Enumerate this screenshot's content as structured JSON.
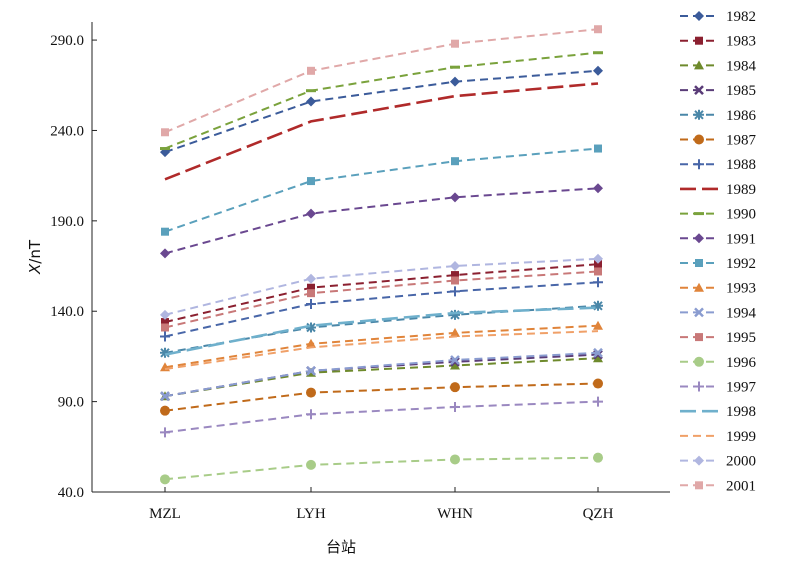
{
  "chart_data": {
    "type": "line",
    "title": "",
    "xlabel": "台站",
    "ylabel": "X/nT",
    "ylabel_italic_part": "X",
    "ylabel_rest": "/nT",
    "categories": [
      "MZL",
      "LYH",
      "WHN",
      "QZH"
    ],
    "ylim": [
      40,
      300
    ],
    "yticks": [
      40,
      90,
      140,
      190,
      240,
      290
    ],
    "ytick_labels": [
      "40.0",
      "90.0",
      "140.0",
      "190.0",
      "240.0",
      "290.0"
    ],
    "grid": false,
    "legend_position": "right",
    "series": [
      {
        "name": "1982",
        "values": [
          228,
          256,
          267,
          273
        ],
        "color": "#3b5b9a",
        "marker": "diamond",
        "dash": "dashed"
      },
      {
        "name": "1983",
        "values": [
          134,
          153,
          160,
          166
        ],
        "color": "#8b2030",
        "marker": "square",
        "dash": "dashed"
      },
      {
        "name": "1984",
        "values": [
          93,
          106,
          110,
          114
        ],
        "color": "#6e8a2c",
        "marker": "triangle",
        "dash": "dashed"
      },
      {
        "name": "1985",
        "values": [
          93,
          107,
          112,
          116
        ],
        "color": "#5a3c78",
        "marker": "x",
        "dash": "dashed"
      },
      {
        "name": "1986",
        "values": [
          117,
          131,
          138,
          143
        ],
        "color": "#4a87a8",
        "marker": "star",
        "dash": "dashed"
      },
      {
        "name": "1987",
        "values": [
          85,
          95,
          98,
          100
        ],
        "color": "#c06a1a",
        "marker": "circle",
        "dash": "dashed"
      },
      {
        "name": "1988",
        "values": [
          126,
          144,
          151,
          156
        ],
        "color": "#4866a8",
        "marker": "plus",
        "dash": "dashed"
      },
      {
        "name": "1989",
        "values": [
          213,
          245,
          259,
          266
        ],
        "color": "#b02a2a",
        "marker": "none",
        "dash": "longdash"
      },
      {
        "name": "1990",
        "values": [
          230,
          262,
          275,
          283
        ],
        "color": "#7aa23c",
        "marker": "dash",
        "dash": "dashed"
      },
      {
        "name": "1991",
        "values": [
          172,
          194,
          203,
          208
        ],
        "color": "#6a4890",
        "marker": "diamond",
        "dash": "dashed"
      },
      {
        "name": "1992",
        "values": [
          184,
          212,
          223,
          230
        ],
        "color": "#5aa0bc",
        "marker": "square",
        "dash": "dashed"
      },
      {
        "name": "1993",
        "values": [
          109,
          122,
          128,
          132
        ],
        "color": "#e0843a",
        "marker": "triangle",
        "dash": "dashed"
      },
      {
        "name": "1994",
        "values": [
          93,
          107,
          113,
          117
        ],
        "color": "#8a9cd0",
        "marker": "x",
        "dash": "dashed"
      },
      {
        "name": "1995",
        "values": [
          131,
          150,
          157,
          162
        ],
        "color": "#c87878",
        "marker": "square",
        "dash": "dashed"
      },
      {
        "name": "1996",
        "values": [
          47,
          55,
          58,
          59
        ],
        "color": "#a8cc88",
        "marker": "circle",
        "dash": "dashed"
      },
      {
        "name": "1997",
        "values": [
          73,
          83,
          87,
          90
        ],
        "color": "#9a88c0",
        "marker": "plus",
        "dash": "dashed"
      },
      {
        "name": "1998",
        "values": [
          116,
          132,
          139,
          142
        ],
        "color": "#6fb0cc",
        "marker": "none",
        "dash": "longdash"
      },
      {
        "name": "1999",
        "values": [
          108,
          120,
          126,
          129
        ],
        "color": "#f0a068",
        "marker": "none",
        "dash": "dashed"
      },
      {
        "name": "2000",
        "values": [
          138,
          158,
          165,
          169
        ],
        "color": "#b0b6e0",
        "marker": "diamond",
        "dash": "dashed"
      },
      {
        "name": "2001",
        "values": [
          239,
          273,
          288,
          296
        ],
        "color": "#e0a8a8",
        "marker": "square",
        "dash": "dashed"
      }
    ]
  }
}
